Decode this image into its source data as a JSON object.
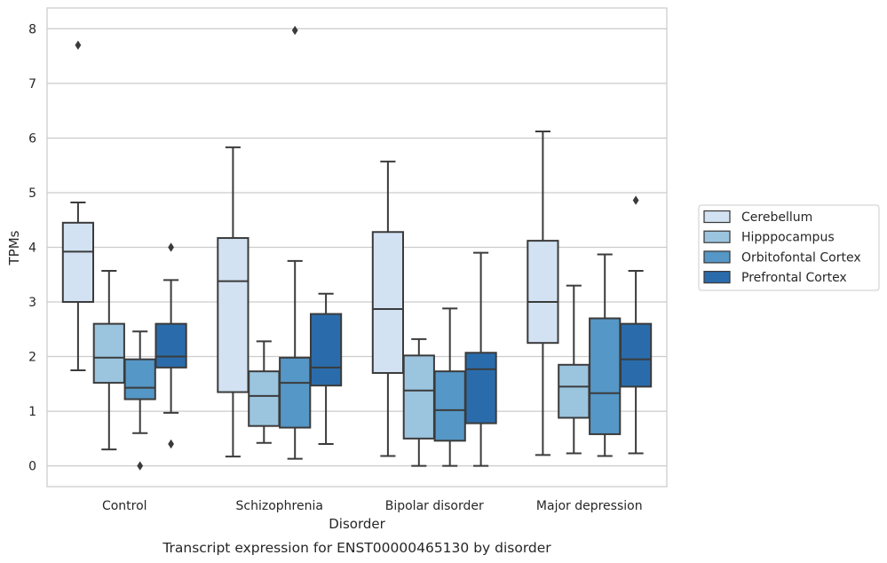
{
  "chart_data": {
    "type": "box",
    "caption": "Transcript expression for ENST00000465130 by disorder",
    "xlabel": "Disorder",
    "ylabel": "TPMs",
    "ylim": [
      -0.38,
      8.38
    ],
    "yticks": [
      0,
      1,
      2,
      3,
      4,
      5,
      6,
      7,
      8
    ],
    "categories": [
      "Control",
      "Schizophrenia",
      "Bipolar disorder",
      "Major depression"
    ],
    "grid": true,
    "legend_position": "right",
    "series": [
      {
        "name": "Cerebellum",
        "color": "#d2e2f2",
        "boxes": [
          {
            "whislo": 1.75,
            "q1": 3.0,
            "median": 3.92,
            "q3": 4.45,
            "whishi": 4.82,
            "fliers": [
              7.7
            ]
          },
          {
            "whislo": 0.17,
            "q1": 1.35,
            "median": 3.38,
            "q3": 4.17,
            "whishi": 5.83,
            "fliers": []
          },
          {
            "whislo": 0.18,
            "q1": 1.7,
            "median": 2.87,
            "q3": 4.28,
            "whishi": 5.57,
            "fliers": []
          },
          {
            "whislo": 0.2,
            "q1": 2.25,
            "median": 3.0,
            "q3": 4.12,
            "whishi": 6.12,
            "fliers": []
          }
        ]
      },
      {
        "name": "Hipppocampus",
        "color": "#9bc4df",
        "boxes": [
          {
            "whislo": 0.3,
            "q1": 1.52,
            "median": 1.98,
            "q3": 2.6,
            "whishi": 3.57,
            "fliers": []
          },
          {
            "whislo": 0.42,
            "q1": 0.73,
            "median": 1.28,
            "q3": 1.73,
            "whishi": 2.28,
            "fliers": []
          },
          {
            "whislo": 0.0,
            "q1": 0.5,
            "median": 1.38,
            "q3": 2.02,
            "whishi": 2.32,
            "fliers": []
          },
          {
            "whislo": 0.23,
            "q1": 0.88,
            "median": 1.45,
            "q3": 1.85,
            "whishi": 3.3,
            "fliers": []
          }
        ]
      },
      {
        "name": "Orbitofontal Cortex",
        "color": "#5597c6",
        "boxes": [
          {
            "whislo": 0.6,
            "q1": 1.22,
            "median": 1.43,
            "q3": 1.95,
            "whishi": 2.46,
            "fliers": [
              0.0
            ]
          },
          {
            "whislo": 0.13,
            "q1": 0.7,
            "median": 1.52,
            "q3": 1.98,
            "whishi": 3.75,
            "fliers": [
              7.97
            ]
          },
          {
            "whislo": 0.0,
            "q1": 0.46,
            "median": 1.02,
            "q3": 1.73,
            "whishi": 2.88,
            "fliers": []
          },
          {
            "whislo": 0.18,
            "q1": 0.58,
            "median": 1.33,
            "q3": 2.7,
            "whishi": 3.87,
            "fliers": []
          }
        ]
      },
      {
        "name": "Prefrontal Cortex",
        "color": "#2a6cab",
        "boxes": [
          {
            "whislo": 0.97,
            "q1": 1.8,
            "median": 2.0,
            "q3": 2.6,
            "whishi": 3.4,
            "fliers": [
              4.0,
              0.4
            ]
          },
          {
            "whislo": 0.4,
            "q1": 1.47,
            "median": 1.8,
            "q3": 2.78,
            "whishi": 3.15,
            "fliers": []
          },
          {
            "whislo": 0.0,
            "q1": 0.78,
            "median": 1.77,
            "q3": 2.07,
            "whishi": 3.9,
            "fliers": []
          },
          {
            "whislo": 0.23,
            "q1": 1.45,
            "median": 1.95,
            "q3": 2.6,
            "whishi": 3.57,
            "fliers": [
              4.86
            ]
          }
        ]
      }
    ]
  }
}
